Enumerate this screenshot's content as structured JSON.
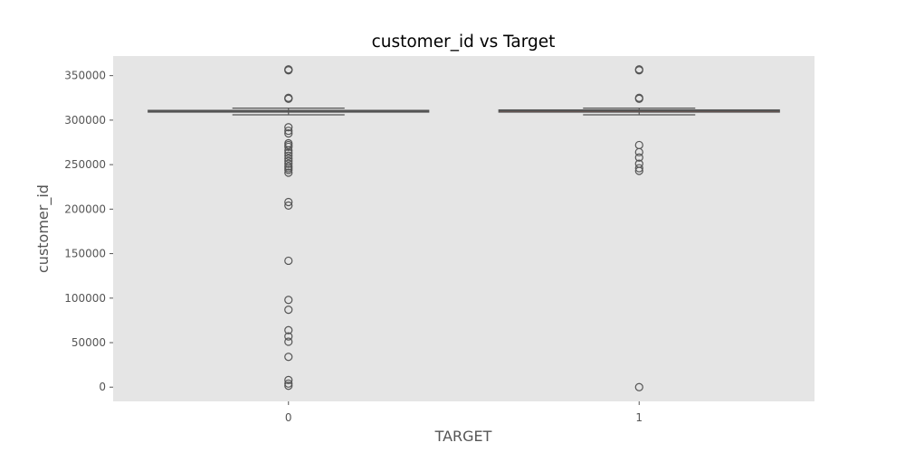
{
  "chart_data": {
    "type": "box",
    "title": "customer_id vs Target",
    "xlabel": "TARGET",
    "ylabel": "customer_id",
    "categories": [
      "0",
      "1"
    ],
    "ylim": [
      -16000,
      372000
    ],
    "yticks": [
      0,
      50000,
      100000,
      150000,
      200000,
      250000,
      300000,
      350000
    ],
    "ytick_labels": [
      "0",
      "50000",
      "100000",
      "150000",
      "200000",
      "250000",
      "300000",
      "350000"
    ],
    "grid": false,
    "background": "#e5e5e5",
    "box_color": "#e24a33",
    "line_color": "#555555",
    "boxes": [
      {
        "category": "0",
        "whisker_low": 306000,
        "q1": 309000,
        "median": 310000,
        "q3": 311000,
        "whisker_high": 313500,
        "outliers": [
          357000,
          356500,
          356000,
          325000,
          324500,
          324000,
          292000,
          288000,
          285000,
          274000,
          272000,
          270000,
          266000,
          263000,
          260000,
          257000,
          254000,
          251000,
          248000,
          246000,
          244000,
          241000,
          208000,
          204000,
          142000,
          98000,
          87000,
          64000,
          57000,
          51000,
          34000,
          8000,
          4000,
          1500
        ]
      },
      {
        "category": "1",
        "whisker_low": 306000,
        "q1": 309000,
        "median": 310500,
        "q3": 311500,
        "whisker_high": 313500,
        "outliers": [
          357000,
          356000,
          325000,
          324000,
          272000,
          264000,
          258000,
          251000,
          246000,
          243000,
          0
        ]
      }
    ]
  }
}
